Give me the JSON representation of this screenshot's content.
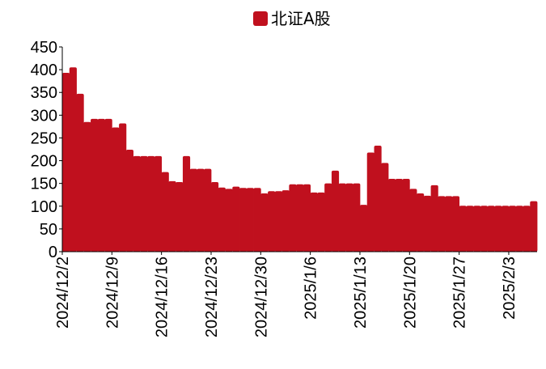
{
  "chart_data": {
    "type": "bar",
    "legend": {
      "position": "top",
      "label": "北证A股"
    },
    "color": "#C0101E",
    "ylim": [
      0,
      450
    ],
    "yticks": [
      0,
      50,
      100,
      150,
      200,
      250,
      300,
      350,
      400,
      450
    ],
    "xtick_labels": [
      "2024/12/2",
      "2024/12/9",
      "2024/12/16",
      "2024/12/23",
      "2024/12/30",
      "2025/1/6",
      "2025/1/13",
      "2025/1/20",
      "2025/1/27",
      "2025/2/3"
    ],
    "xtick_positions": [
      0,
      7,
      14,
      21,
      28,
      35,
      42,
      49,
      56,
      63
    ],
    "grid": false,
    "series": [
      {
        "name": "北证A股",
        "values": [
          393,
          405,
          347,
          285,
          292,
          292,
          292,
          273,
          282,
          224,
          210,
          210,
          210,
          210,
          175,
          155,
          153,
          210,
          182,
          182,
          182,
          153,
          141,
          138,
          143,
          140,
          140,
          140,
          128,
          133,
          133,
          135,
          148,
          148,
          148,
          130,
          130,
          150,
          178,
          150,
          150,
          150,
          103,
          218,
          233,
          195,
          160,
          160,
          160,
          138,
          128,
          123,
          146,
          122,
          122,
          122,
          101,
          101,
          101,
          101,
          101,
          101,
          101,
          101,
          101,
          101,
          111
        ]
      }
    ]
  }
}
